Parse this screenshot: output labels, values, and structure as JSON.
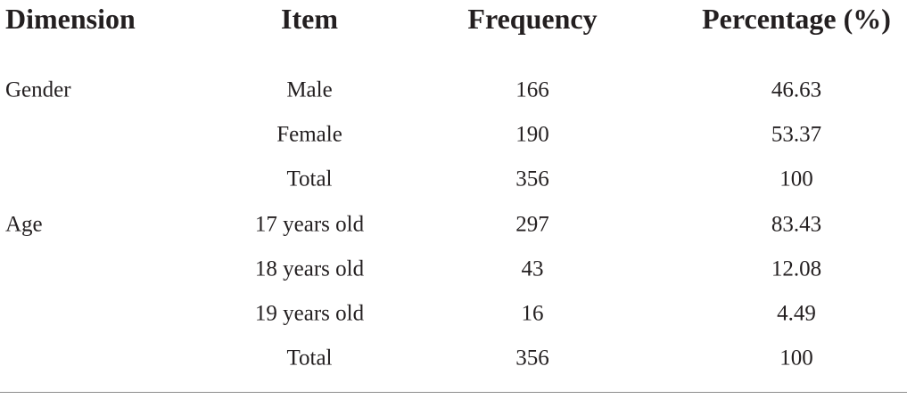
{
  "table": {
    "columns": [
      "Dimension",
      "Item",
      "Frequency",
      "Percentage (%)"
    ],
    "rows": [
      [
        "Gender",
        "Male",
        "166",
        "46.63"
      ],
      [
        null,
        "Female",
        "190",
        "53.37"
      ],
      [
        null,
        "Total",
        "356",
        "100"
      ],
      [
        "Age",
        "17 years old",
        "297",
        "83.43"
      ],
      [
        null,
        "18 years old",
        "43",
        "12.08"
      ],
      [
        null,
        "19 years old",
        "16",
        "4.49"
      ],
      [
        null,
        "Total",
        "356",
        "100"
      ]
    ]
  }
}
